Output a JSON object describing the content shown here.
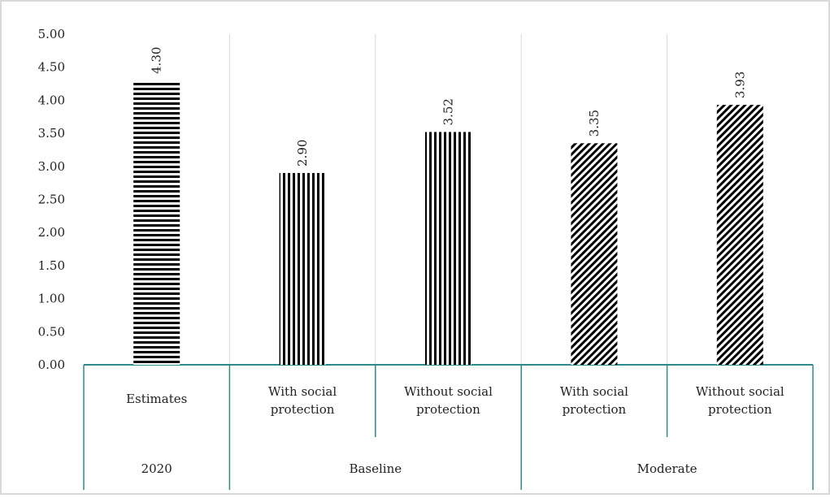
{
  "chart_data": {
    "type": "bar",
    "title": "",
    "xlabel": "",
    "ylabel": "",
    "ylim": [
      0,
      5
    ],
    "yticks": [
      "0.00",
      "0.50",
      "1.00",
      "1.50",
      "2.00",
      "2.50",
      "3.00",
      "3.50",
      "4.00",
      "4.50",
      "5.00"
    ],
    "grid": "vertical separators between categories",
    "bars": [
      {
        "category": [
          "Estimates"
        ],
        "group": "2020",
        "value": 4.3,
        "label": "4.30",
        "pattern": "horizontal-stripes"
      },
      {
        "category": [
          "With social",
          "protection"
        ],
        "group": "Baseline",
        "value": 2.9,
        "label": "2.90",
        "pattern": "vertical-stripes"
      },
      {
        "category": [
          "Without social",
          "protection"
        ],
        "group": "Baseline",
        "value": 3.52,
        "label": "3.52",
        "pattern": "vertical-stripes"
      },
      {
        "category": [
          "With social",
          "protection"
        ],
        "group": "Moderate",
        "value": 3.35,
        "label": "3.35",
        "pattern": "diagonal-stripes"
      },
      {
        "category": [
          "Without social",
          "protection"
        ],
        "group": "Moderate",
        "value": 3.93,
        "label": "3.93",
        "pattern": "diagonal-stripes"
      }
    ],
    "groups": [
      {
        "name": "2020",
        "span": 1
      },
      {
        "name": "Baseline",
        "span": 2
      },
      {
        "name": "Moderate",
        "span": 2
      }
    ],
    "colors": {
      "bar_ink": "#000000",
      "axis_teal": "#2e8b8b",
      "gridline": "#d9d9d9",
      "frame": "#d9d9d9"
    }
  }
}
